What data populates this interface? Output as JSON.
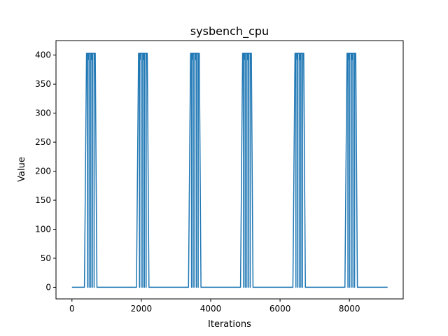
{
  "chart_data": {
    "type": "line",
    "title": "sysbench_cpu",
    "xlabel": "Iterations",
    "ylabel": "Value",
    "xlim": [
      -460,
      9550
    ],
    "ylim": [
      -20,
      425
    ],
    "x_ticks": [
      0,
      2000,
      4000,
      6000,
      8000
    ],
    "y_ticks": [
      0,
      50,
      100,
      150,
      200,
      250,
      300,
      350,
      400
    ],
    "grid": false,
    "legend": "none",
    "color": "#1f77b4",
    "x_range": [
      0,
      9100
    ],
    "baseline_value": 0,
    "burst_value": 403,
    "burst_dip_value": 392,
    "burst_centers": [
      550,
      2050,
      3550,
      5050,
      6560,
      8060
    ],
    "burst_width": 260
  }
}
